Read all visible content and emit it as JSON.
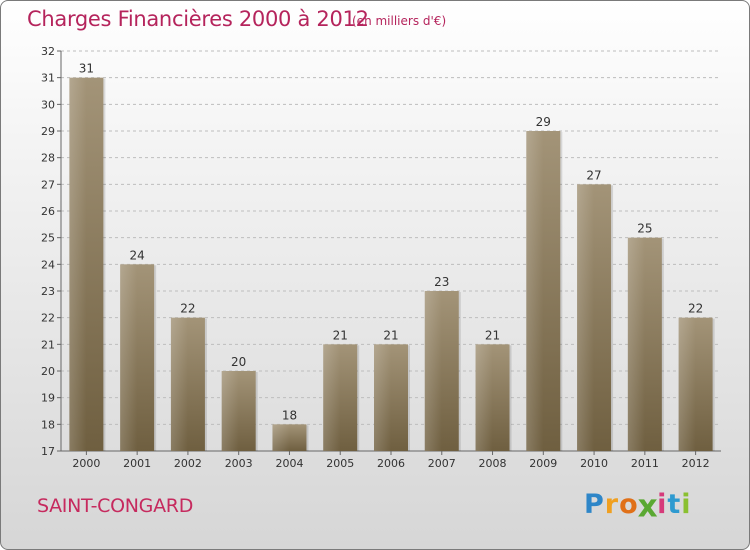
{
  "header": {
    "title": "Charges Financières 2000 à 2012",
    "unit": "(en milliers d'€)"
  },
  "footer": {
    "commune": "SAINT-CONGARD",
    "brand": "Proxiti",
    "brand_letters": [
      {
        "ch": "P",
        "color": "#2e86c8"
      },
      {
        "ch": "r",
        "color": "#f0a020"
      },
      {
        "ch": "o",
        "color": "#e07018"
      },
      {
        "ch": "x",
        "color": "#5aa832"
      },
      {
        "ch": "i",
        "color": "#d63a7a"
      },
      {
        "ch": "t",
        "color": "#2e9ad0"
      },
      {
        "ch": "i",
        "color": "#8ac030"
      }
    ]
  },
  "colors": {
    "title": "#b5245c",
    "bar_top": "#a39478",
    "bar_bottom": "#6f5f40",
    "grid": "#bdbdbd"
  },
  "chart_data": {
    "type": "bar",
    "title": "Charges Financières 2000 à 2012",
    "subtitle": "(en milliers d'€)",
    "xlabel": "",
    "ylabel": "",
    "categories": [
      "2000",
      "2001",
      "2002",
      "2003",
      "2004",
      "2005",
      "2006",
      "2007",
      "2008",
      "2009",
      "2010",
      "2011",
      "2012"
    ],
    "values": [
      31,
      24,
      22,
      20,
      18,
      21,
      21,
      23,
      21,
      29,
      27,
      25,
      22
    ],
    "ylim": [
      17,
      32
    ],
    "yticks": [
      17,
      18,
      19,
      20,
      21,
      22,
      23,
      24,
      25,
      26,
      27,
      28,
      29,
      30,
      31,
      32
    ],
    "grid": "horizontal dashed",
    "data_labels": true
  }
}
